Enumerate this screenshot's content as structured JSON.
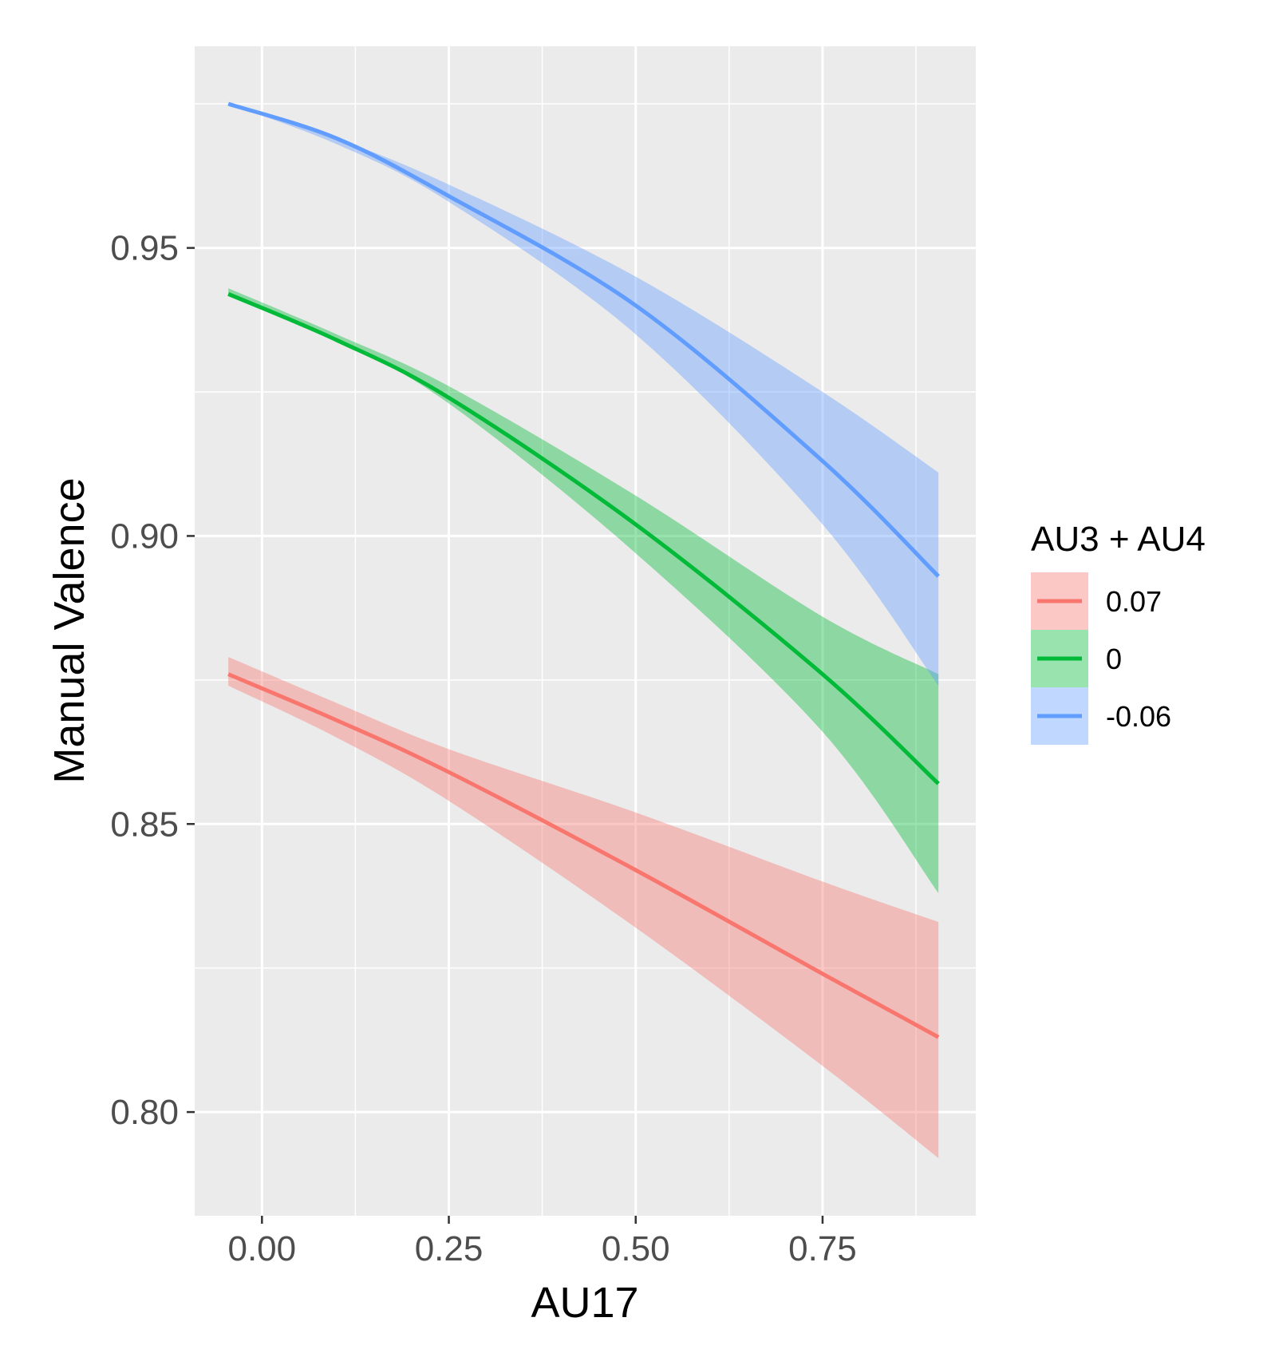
{
  "chart_data": {
    "type": "line",
    "xlabel": "AU17",
    "ylabel": "Manual Valence",
    "xlim": [
      -0.09,
      0.955
    ],
    "ylim": [
      0.782,
      0.985
    ],
    "xticks": [
      0.0,
      0.25,
      0.5,
      0.75
    ],
    "xtick_labels": [
      "0.00",
      "0.25",
      "0.50",
      "0.75"
    ],
    "yticks": [
      0.8,
      0.85,
      0.9,
      0.95
    ],
    "ytick_labels": [
      "0.80",
      "0.85",
      "0.90",
      "0.95"
    ],
    "grid": true,
    "legend": {
      "title": "AU3 + AU4",
      "placement": "right"
    },
    "x": [
      -0.045,
      0.1,
      0.25,
      0.5,
      0.75,
      0.905
    ],
    "series": [
      {
        "name": "0.07",
        "color": "#F8766D",
        "values": [
          0.876,
          0.868,
          0.859,
          0.842,
          0.824,
          0.813
        ],
        "lower": [
          0.874,
          0.865,
          0.854,
          0.832,
          0.808,
          0.792
        ],
        "upper": [
          0.879,
          0.871,
          0.863,
          0.852,
          0.84,
          0.833
        ]
      },
      {
        "name": "0",
        "color": "#00BA38",
        "values": [
          0.942,
          0.934,
          0.924,
          0.902,
          0.876,
          0.857
        ],
        "lower": [
          0.942,
          0.934,
          0.923,
          0.897,
          0.866,
          0.838
        ],
        "upper": [
          0.943,
          0.935,
          0.926,
          0.907,
          0.886,
          0.876
        ]
      },
      {
        "name": "-0.06",
        "color": "#619CFF",
        "values": [
          0.975,
          0.969,
          0.959,
          0.94,
          0.913,
          0.893
        ],
        "lower": [
          0.975,
          0.968,
          0.958,
          0.935,
          0.902,
          0.874
        ],
        "upper": [
          0.975,
          0.969,
          0.961,
          0.945,
          0.925,
          0.911
        ]
      }
    ]
  }
}
